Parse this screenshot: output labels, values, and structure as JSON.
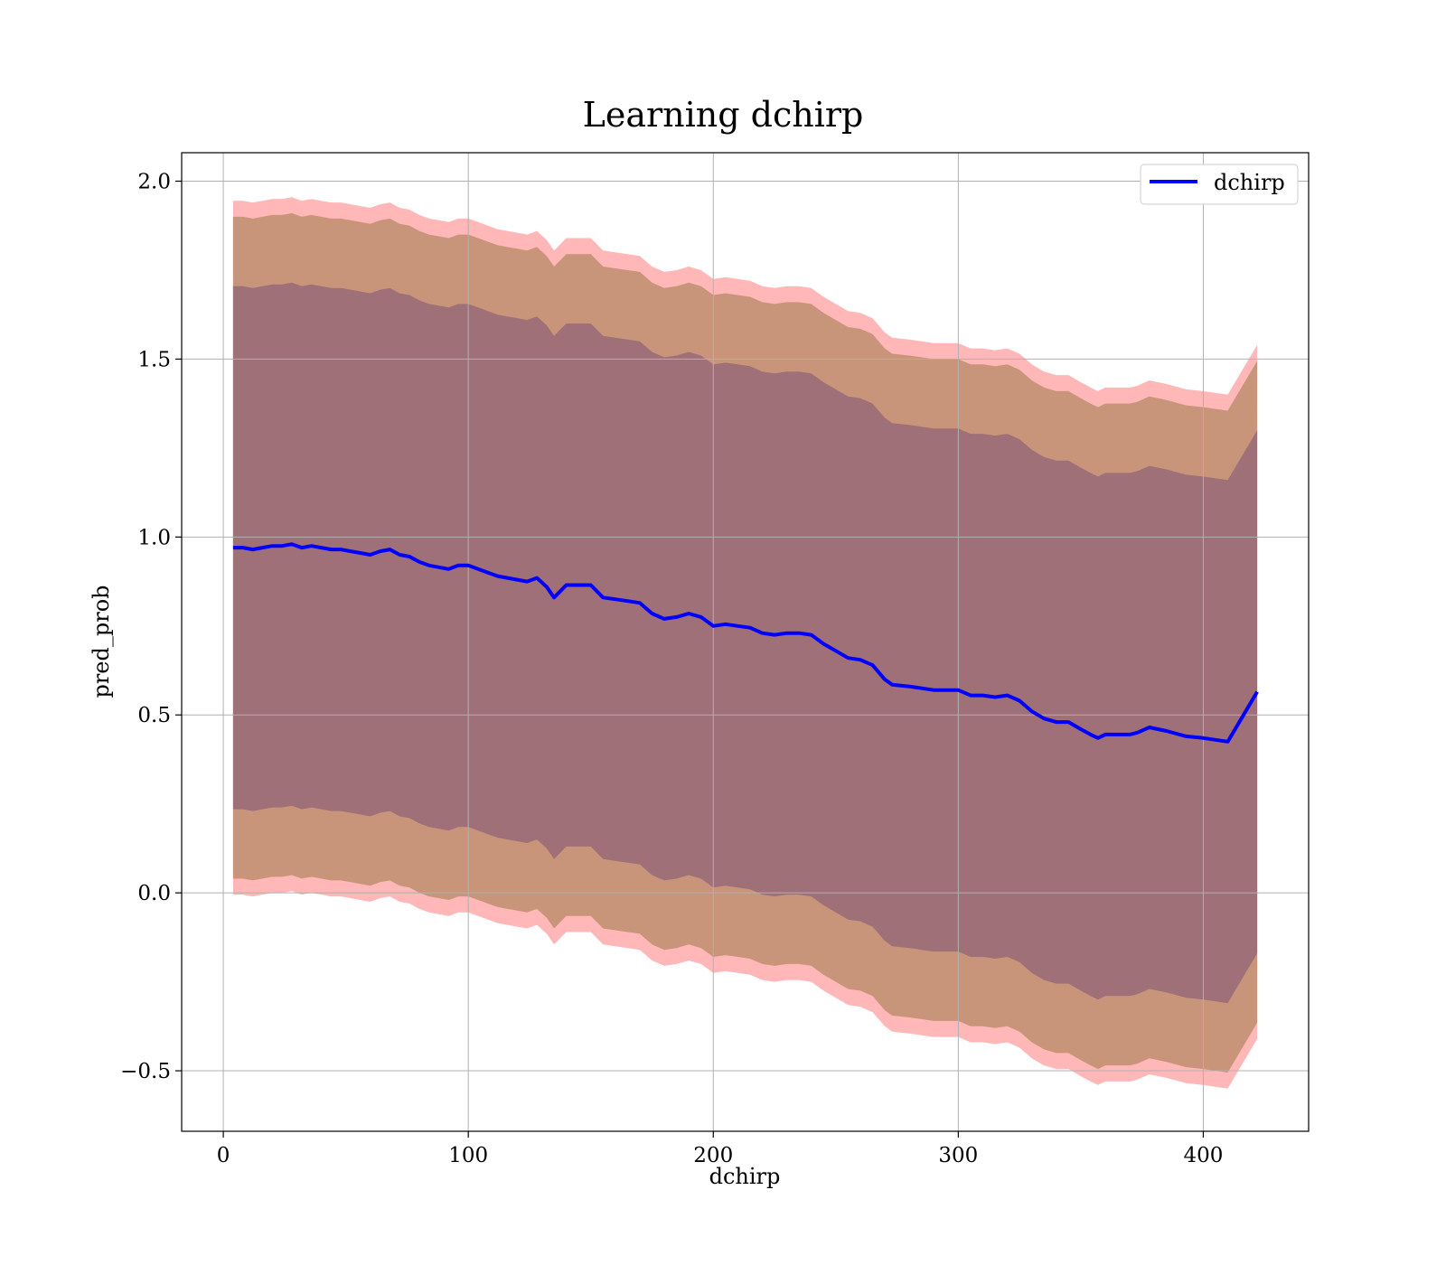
{
  "chart_data": {
    "type": "line",
    "title": "Learning dchirp",
    "xlabel": "dchirp",
    "ylabel": "pred_prob",
    "xlim": [
      -17,
      443
    ],
    "ylim": [
      -0.67,
      2.08
    ],
    "xticks": [
      0,
      100,
      200,
      300,
      400
    ],
    "yticks": [
      -0.5,
      0.0,
      0.5,
      1.0,
      1.5,
      2.0
    ],
    "xtick_labels": [
      "0",
      "100",
      "200",
      "300",
      "400"
    ],
    "ytick_labels": [
      "−0.5",
      "0.0",
      "0.5",
      "1.0",
      "1.5",
      "2.0"
    ],
    "grid": true,
    "legend_position": "top-right",
    "colors": {
      "line": "#0000ff",
      "band_outer": "#ff9f9f",
      "band_middle": "#c8957a",
      "band_inner": "#a07079",
      "grid": "#b0b0b0"
    },
    "band_half_widths": {
      "inner": 0.735,
      "middle": 0.93,
      "outer": 0.975
    },
    "series": [
      {
        "name": "dchirp",
        "x": [
          4,
          8,
          12,
          16,
          20,
          24,
          28,
          32,
          36,
          40,
          44,
          48,
          52,
          56,
          60,
          64,
          68,
          72,
          76,
          80,
          84,
          88,
          92,
          96,
          100,
          104,
          108,
          112,
          116,
          120,
          124,
          128,
          132,
          135,
          140,
          145,
          150,
          155,
          160,
          165,
          170,
          175,
          180,
          185,
          190,
          195,
          200,
          205,
          210,
          215,
          220,
          225,
          230,
          235,
          240,
          245,
          250,
          255,
          260,
          265,
          270,
          273,
          280,
          285,
          290,
          295,
          300,
          305,
          310,
          315,
          320,
          325,
          330,
          335,
          340,
          345,
          350,
          354,
          357,
          360,
          365,
          370,
          373,
          378,
          385,
          393,
          400,
          410,
          422
        ],
        "y": [
          0.97,
          0.97,
          0.965,
          0.97,
          0.975,
          0.975,
          0.98,
          0.97,
          0.975,
          0.97,
          0.965,
          0.965,
          0.96,
          0.955,
          0.95,
          0.96,
          0.965,
          0.95,
          0.945,
          0.93,
          0.92,
          0.915,
          0.91,
          0.92,
          0.92,
          0.91,
          0.9,
          0.89,
          0.885,
          0.88,
          0.875,
          0.885,
          0.86,
          0.83,
          0.865,
          0.865,
          0.865,
          0.83,
          0.825,
          0.82,
          0.815,
          0.785,
          0.77,
          0.775,
          0.785,
          0.775,
          0.75,
          0.755,
          0.75,
          0.745,
          0.73,
          0.725,
          0.73,
          0.73,
          0.725,
          0.7,
          0.68,
          0.66,
          0.655,
          0.64,
          0.6,
          0.585,
          0.58,
          0.575,
          0.57,
          0.57,
          0.57,
          0.555,
          0.555,
          0.55,
          0.555,
          0.54,
          0.51,
          0.49,
          0.48,
          0.48,
          0.46,
          0.445,
          0.435,
          0.445,
          0.445,
          0.445,
          0.45,
          0.465,
          0.455,
          0.44,
          0.435,
          0.425,
          0.565
        ]
      }
    ]
  }
}
